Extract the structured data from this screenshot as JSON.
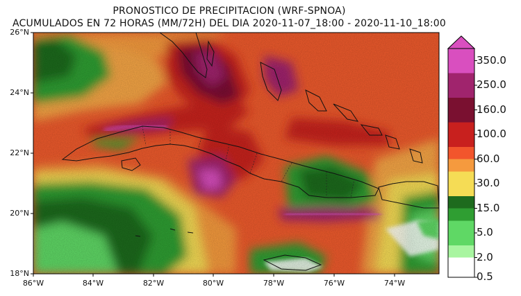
{
  "title_line1": "PRONOSTICO DE PRECIPITACION (WRF-SPNOA)",
  "title_line2": "ACUMULADOS EN 72 HORAS (MM/72H) DEL DIA 2020-11-07_18:00 - 2020-11-10_18:00",
  "lat_labels": [
    "26°N",
    "24°N",
    "22°N",
    "20°N",
    "18°N"
  ],
  "lon_labels": [
    "86°W",
    "84°W",
    "82°W",
    "80°W",
    "78°W",
    "76°W",
    "74°W"
  ],
  "colorbar": {
    "labels": [
      "350.0",
      "250.0",
      "160.0",
      "100.0",
      "60.0",
      "30.0",
      "15.0",
      "5.0",
      "2.0",
      "0.5"
    ],
    "colors": [
      "#d94fbf",
      "#a0246d",
      "#7a1030",
      "#c8201e",
      "#f2552c",
      "#f59a3e",
      "#f5dc55",
      "#1e6b1e",
      "#2f9e32",
      "#5fd865",
      "#a8f5a0",
      "#ffffff"
    ]
  }
}
